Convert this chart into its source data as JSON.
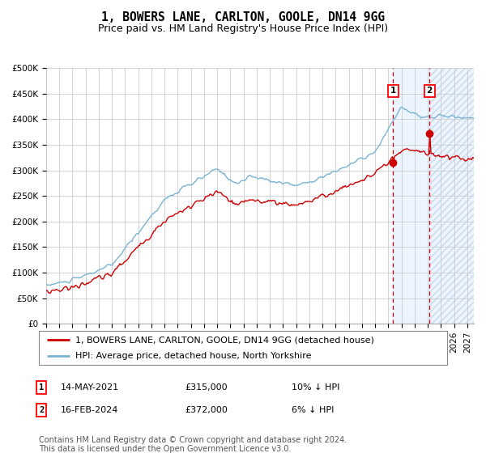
{
  "title": "1, BOWERS LANE, CARLTON, GOOLE, DN14 9GG",
  "subtitle": "Price paid vs. HM Land Registry's House Price Index (HPI)",
  "ylim": [
    0,
    500000
  ],
  "yticks": [
    0,
    50000,
    100000,
    150000,
    200000,
    250000,
    300000,
    350000,
    400000,
    450000,
    500000
  ],
  "ytick_labels": [
    "£0",
    "£50K",
    "£100K",
    "£150K",
    "£200K",
    "£250K",
    "£300K",
    "£350K",
    "£400K",
    "£450K",
    "£500K"
  ],
  "xlim_start": 1995.0,
  "xlim_end": 2027.5,
  "hpi_color": "#7ab3d4",
  "price_color": "#cc0000",
  "marker_color": "#cc0000",
  "marker1_x": 2021.37,
  "marker1_y": 315000,
  "marker2_x": 2024.12,
  "marker2_y": 372000,
  "vline1_x": 2021.37,
  "vline2_x": 2024.12,
  "shade_start": 2021.37,
  "shade_end": 2027.5,
  "legend_label1": "1, BOWERS LANE, CARLTON, GOOLE, DN14 9GG (detached house)",
  "legend_label2": "HPI: Average price, detached house, North Yorkshire",
  "sale1_date": "14-MAY-2021",
  "sale1_price": "£315,000",
  "sale1_note": "10% ↓ HPI",
  "sale2_date": "16-FEB-2024",
  "sale2_price": "£372,000",
  "sale2_note": "6% ↓ HPI",
  "footnote": "Contains HM Land Registry data © Crown copyright and database right 2024.\nThis data is licensed under the Open Government Licence v3.0.",
  "title_fontsize": 10.5,
  "subtitle_fontsize": 9,
  "tick_fontsize": 7.5,
  "legend_fontsize": 8,
  "table_fontsize": 8,
  "footnote_fontsize": 7,
  "background_color": "#ffffff",
  "grid_color": "#cccccc"
}
